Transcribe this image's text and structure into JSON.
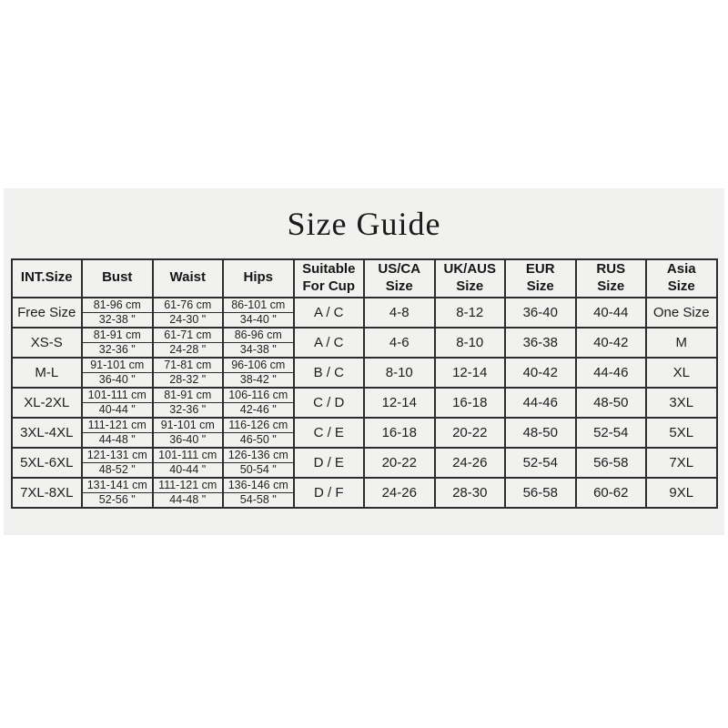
{
  "title": "Size Guide",
  "colors": {
    "page_bg": "#ffffff",
    "panel_bg": "#f1f1ef",
    "border": "#2d2d2d",
    "text": "#1d1d1d"
  },
  "table": {
    "columns": [
      "INT.Size",
      "Bust",
      "Waist",
      "Hips",
      "Suitable\nFor Cup",
      "US/CA\nSize",
      "UK/AUS\nSize",
      "EUR\nSize",
      "RUS\nSize",
      "Asia\nSize"
    ],
    "rows": [
      {
        "int_size": "Free Size",
        "bust_cm": "81-96 cm",
        "bust_in": "32-38 \"",
        "waist_cm": "61-76 cm",
        "waist_in": "24-30 \"",
        "hips_cm": "86-101 cm",
        "hips_in": "34-40 \"",
        "cup": "A / C",
        "us_ca": "4-8",
        "uk_aus": "8-12",
        "eur": "36-40",
        "rus": "40-44",
        "asia": "One Size"
      },
      {
        "int_size": "XS-S",
        "bust_cm": "81-91 cm",
        "bust_in": "32-36 \"",
        "waist_cm": "61-71 cm",
        "waist_in": "24-28 \"",
        "hips_cm": "86-96 cm",
        "hips_in": "34-38 \"",
        "cup": "A / C",
        "us_ca": "4-6",
        "uk_aus": "8-10",
        "eur": "36-38",
        "rus": "40-42",
        "asia": "M"
      },
      {
        "int_size": "M-L",
        "bust_cm": "91-101 cm",
        "bust_in": "36-40 \"",
        "waist_cm": "71-81 cm",
        "waist_in": "28-32 \"",
        "hips_cm": "96-106 cm",
        "hips_in": "38-42 \"",
        "cup": "B / C",
        "us_ca": "8-10",
        "uk_aus": "12-14",
        "eur": "40-42",
        "rus": "44-46",
        "asia": "XL"
      },
      {
        "int_size": "XL-2XL",
        "bust_cm": "101-111 cm",
        "bust_in": "40-44 \"",
        "waist_cm": "81-91 cm",
        "waist_in": "32-36 \"",
        "hips_cm": "106-116 cm",
        "hips_in": "42-46 \"",
        "cup": "C / D",
        "us_ca": "12-14",
        "uk_aus": "16-18",
        "eur": "44-46",
        "rus": "48-50",
        "asia": "3XL"
      },
      {
        "int_size": "3XL-4XL",
        "bust_cm": "111-121 cm",
        "bust_in": "44-48 \"",
        "waist_cm": "91-101 cm",
        "waist_in": "36-40 \"",
        "hips_cm": "116-126 cm",
        "hips_in": "46-50 \"",
        "cup": "C / E",
        "us_ca": "16-18",
        "uk_aus": "20-22",
        "eur": "48-50",
        "rus": "52-54",
        "asia": "5XL"
      },
      {
        "int_size": "5XL-6XL",
        "bust_cm": "121-131 cm",
        "bust_in": "48-52 \"",
        "waist_cm": "101-111 cm",
        "waist_in": "40-44 \"",
        "hips_cm": "126-136 cm",
        "hips_in": "50-54 \"",
        "cup": "D / E",
        "us_ca": "20-22",
        "uk_aus": "24-26",
        "eur": "52-54",
        "rus": "56-58",
        "asia": "7XL"
      },
      {
        "int_size": "7XL-8XL",
        "bust_cm": "131-141 cm",
        "bust_in": "52-56 \"",
        "waist_cm": "111-121 cm",
        "waist_in": "44-48 \"",
        "hips_cm": "136-146 cm",
        "hips_in": "54-58 \"",
        "cup": "D / F",
        "us_ca": "24-26",
        "uk_aus": "28-30",
        "eur": "56-58",
        "rus": "60-62",
        "asia": "9XL"
      }
    ]
  }
}
